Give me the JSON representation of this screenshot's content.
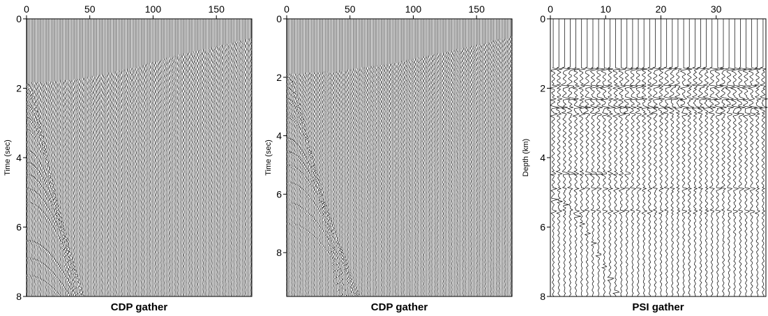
{
  "figure": {
    "description_free": true
  },
  "chart_data": [
    {
      "type": "seismic-wiggle",
      "title": "CDP gather",
      "xlabel": "",
      "ylabel": "Time (sec)",
      "xlim": [
        0,
        178
      ],
      "ylim": [
        0,
        8
      ],
      "y_inverted": true,
      "x_axis_position": "top",
      "x_ticks": [
        0,
        50,
        100,
        150
      ],
      "y_ticks": [
        0,
        2,
        4,
        6,
        8
      ],
      "trace_count": 178,
      "trace_color": "#000000",
      "first_arrival": [
        [
          0,
          1.85
        ],
        [
          40,
          1.75
        ],
        [
          80,
          1.45
        ],
        [
          120,
          1.05
        ],
        [
          150,
          0.8
        ],
        [
          178,
          0.55
        ]
      ],
      "reflectors": [
        {
          "t0": 1.9,
          "moveout": 5e-05,
          "x_extent": 178,
          "strength": 1.0
        },
        {
          "t0": 2.15,
          "moveout": 4.5e-05,
          "x_extent": 178,
          "strength": 0.95
        },
        {
          "t0": 2.5,
          "moveout": 4e-05,
          "x_extent": 170,
          "strength": 0.9
        },
        {
          "t0": 2.85,
          "moveout": 3.5e-05,
          "x_extent": 160,
          "strength": 0.8
        },
        {
          "t0": 3.2,
          "moveout": 3e-05,
          "x_extent": 140,
          "strength": 0.6
        },
        {
          "t0": 3.8,
          "moveout": 2.6e-05,
          "x_extent": 130,
          "strength": 0.7
        },
        {
          "t0": 4.15,
          "moveout": 2.4e-05,
          "x_extent": 120,
          "strength": 0.9
        },
        {
          "t0": 4.5,
          "moveout": 2.2e-05,
          "x_extent": 110,
          "strength": 0.8
        },
        {
          "t0": 4.9,
          "moveout": 2e-05,
          "x_extent": 100,
          "strength": 0.7
        },
        {
          "t0": 5.3,
          "moveout": 1.8e-05,
          "x_extent": 90,
          "strength": 0.6
        },
        {
          "t0": 6.4,
          "moveout": 1.5e-05,
          "x_extent": 75,
          "strength": 0.7
        },
        {
          "t0": 6.9,
          "moveout": 1.4e-05,
          "x_extent": 60,
          "strength": 0.6
        },
        {
          "t0": 7.4,
          "moveout": 1.3e-05,
          "x_extent": 45,
          "strength": 0.5
        }
      ]
    },
    {
      "type": "seismic-wiggle",
      "title": "CDP gather",
      "xlabel": "",
      "ylabel": "Time (sec)",
      "xlim": [
        0,
        178
      ],
      "ylim": [
        0,
        9.5
      ],
      "y_inverted": true,
      "x_axis_position": "top",
      "x_ticks": [
        0,
        50,
        100,
        150
      ],
      "y_ticks": [
        0,
        2,
        4,
        6,
        8
      ],
      "trace_count": 178,
      "trace_color": "#000000",
      "first_arrival": [
        [
          0,
          1.9
        ],
        [
          40,
          1.8
        ],
        [
          80,
          1.55
        ],
        [
          120,
          1.2
        ],
        [
          150,
          0.9
        ],
        [
          178,
          0.6
        ]
      ],
      "reflectors": [
        {
          "t0": 2.0,
          "moveout": 5e-05,
          "x_extent": 178,
          "strength": 1.0
        },
        {
          "t0": 2.35,
          "moveout": 4.4e-05,
          "x_extent": 175,
          "strength": 0.9
        },
        {
          "t0": 2.75,
          "moveout": 3.8e-05,
          "x_extent": 160,
          "strength": 0.85
        },
        {
          "t0": 3.3,
          "moveout": 3e-05,
          "x_extent": 140,
          "strength": 0.6
        },
        {
          "t0": 4.1,
          "moveout": 2.6e-05,
          "x_extent": 120,
          "strength": 0.9
        },
        {
          "t0": 4.55,
          "moveout": 2.3e-05,
          "x_extent": 110,
          "strength": 0.8
        },
        {
          "t0": 5.0,
          "moveout": 2e-05,
          "x_extent": 95,
          "strength": 0.6
        },
        {
          "t0": 5.6,
          "moveout": 1.8e-05,
          "x_extent": 85,
          "strength": 0.5
        },
        {
          "t0": 6.3,
          "moveout": 1.6e-05,
          "x_extent": 70,
          "strength": 0.5
        },
        {
          "t0": 7.0,
          "moveout": 1.4e-05,
          "x_extent": 55,
          "strength": 0.4
        }
      ]
    },
    {
      "type": "seismic-wiggle",
      "title": "PSI gather",
      "xlabel": "",
      "ylabel": "Depth (km)",
      "xlim": [
        0,
        39
      ],
      "ylim": [
        0,
        8
      ],
      "y_inverted": true,
      "x_axis_position": "top",
      "x_ticks": [
        0,
        10,
        20,
        30
      ],
      "y_ticks": [
        0,
        2,
        4,
        6,
        8
      ],
      "trace_count": 38,
      "trace_color": "#000000",
      "first_arrival": [
        [
          0,
          1.4
        ],
        [
          39,
          1.4
        ]
      ],
      "reflectors": [
        {
          "t0": 1.45,
          "moveout": 0,
          "x_extent": 39,
          "strength": 1.0
        },
        {
          "t0": 1.95,
          "moveout": 0,
          "x_extent": 39,
          "strength": 1.0
        },
        {
          "t0": 2.3,
          "moveout": 0,
          "x_extent": 39,
          "strength": 0.9
        },
        {
          "t0": 2.55,
          "moveout": 0,
          "x_extent": 39,
          "strength": 1.0
        },
        {
          "t0": 2.75,
          "moveout": 0,
          "x_extent": 39,
          "strength": 0.7
        },
        {
          "t0": 4.45,
          "moveout": 0,
          "x_extent": 14,
          "strength": 0.9
        },
        {
          "t0": 4.9,
          "moveout": 0,
          "x_extent": 39,
          "strength": 0.6
        },
        {
          "t0": 5.2,
          "moveout": 0.00025,
          "x_extent": 39,
          "strength": 0.9
        },
        {
          "t0": 5.55,
          "moveout": 0,
          "x_extent": 39,
          "strength": 0.6
        }
      ]
    }
  ]
}
